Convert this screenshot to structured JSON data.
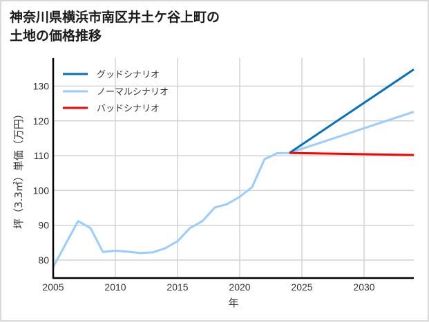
{
  "chart_data": {
    "type": "line",
    "title": "神奈川県横浜市南区井土ケ谷上町の\n土地の価格推移",
    "xlabel": "年",
    "ylabel": "坪（3.3㎡）単価（万円）",
    "xlim": [
      2005,
      2034
    ],
    "ylim": [
      75,
      137
    ],
    "grid": true,
    "legend_position": "upper left",
    "x_ticks": [
      2005,
      2010,
      2015,
      2020,
      2025,
      2030
    ],
    "y_ticks": [
      80,
      90,
      100,
      110,
      120,
      130
    ],
    "series": [
      {
        "name": "グッドシナリオ",
        "color": "#0070c0",
        "x": [
          2024,
          2034
        ],
        "values": [
          110.8,
          134.8
        ]
      },
      {
        "name": "ノーマルシナリオ",
        "color": "#99ccff",
        "x": [
          2005,
          2006,
          2007,
          2008,
          2009,
          2010,
          2011,
          2012,
          2013,
          2014,
          2015,
          2016,
          2017,
          2018,
          2019,
          2020,
          2021,
          2022,
          2023,
          2024,
          2034
        ],
        "values": [
          78.0,
          84.6,
          91.2,
          89.2,
          82.3,
          82.7,
          82.4,
          82.0,
          82.2,
          83.4,
          85.4,
          89.2,
          91.2,
          95.1,
          96.1,
          98.2,
          101.0,
          109.0,
          110.7,
          110.8,
          122.6
        ]
      },
      {
        "name": "バッドシナリオ",
        "color": "#ff0000",
        "x": [
          2024,
          2034
        ],
        "values": [
          110.8,
          110.2
        ]
      }
    ]
  },
  "title": "神奈川県横浜市南区井土ケ谷上町の\n土地の価格推移",
  "axes": {
    "xlabel": "年",
    "ylabel": "坪（3.3㎡）単価（万円）",
    "x_tick_labels": [
      "2005",
      "2010",
      "2015",
      "2020",
      "2025",
      "2030"
    ],
    "y_tick_labels": [
      "80",
      "90",
      "100",
      "110",
      "120",
      "130"
    ]
  },
  "legend": [
    {
      "label": "グッドシナリオ",
      "color": "#0070c0"
    },
    {
      "label": "ノーマルシナリオ",
      "color": "#99ccff"
    },
    {
      "label": "バッドシナリオ",
      "color": "#ff0000"
    }
  ]
}
